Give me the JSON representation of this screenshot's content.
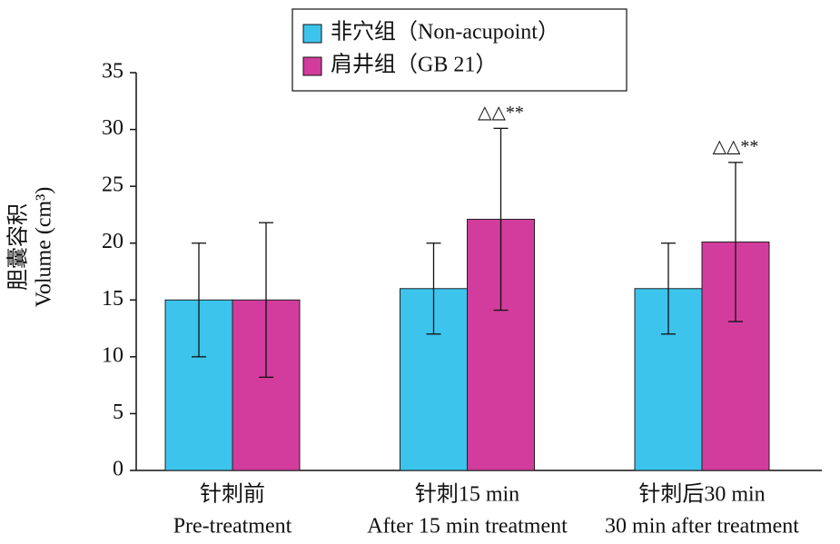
{
  "chart_data": {
    "type": "bar",
    "y_label": [
      "胆囊容积",
      "Volume (cm³)"
    ],
    "categories": [
      "针刺前",
      "针刺15 min",
      "针刺后30 min"
    ],
    "categories_en": [
      "Pre-treatment",
      "After 15 min treatment",
      "30 min after treatment"
    ],
    "series": [
      {
        "name": "非穴组（Non-acupoint）",
        "color": "#3cc4ec",
        "values": [
          15,
          16,
          16
        ],
        "errors": [
          5,
          4,
          4
        ],
        "annotations": [
          null,
          null,
          null
        ]
      },
      {
        "name": "肩井组（GB 21）",
        "color": "#d23c9c",
        "values": [
          15,
          22.1,
          20.1
        ],
        "errors": [
          6.8,
          8,
          7
        ],
        "annotations": [
          null,
          "△△**",
          "△△**"
        ]
      }
    ],
    "ylim": [
      0,
      35
    ],
    "yticks": [
      0,
      5,
      10,
      15,
      20,
      25,
      30,
      35
    ],
    "grid": false,
    "legend": "top"
  }
}
